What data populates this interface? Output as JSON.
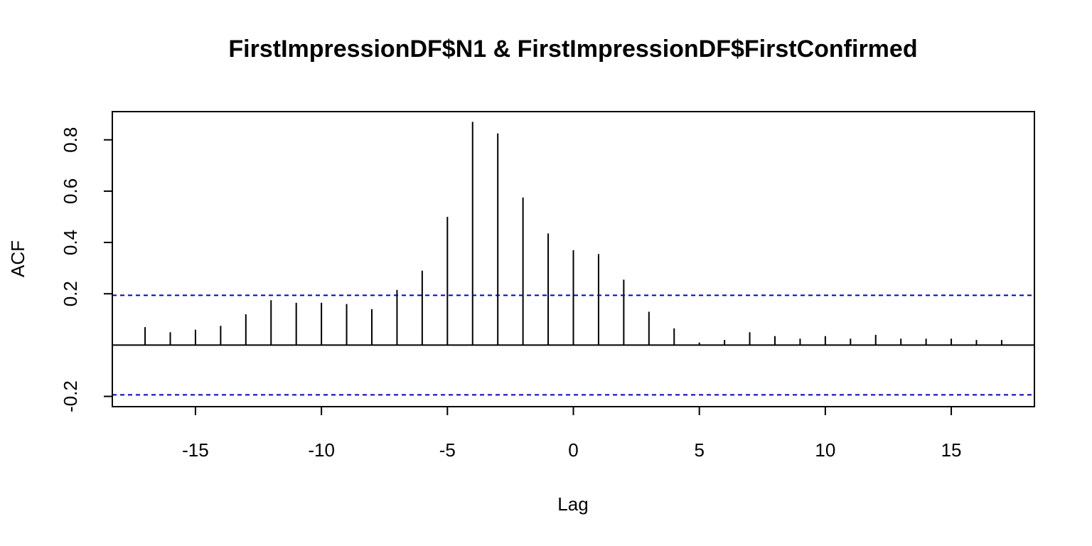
{
  "chart_data": {
    "type": "bar",
    "title": "FirstImpressionDF$N1 & FirstImpressionDF$FirstConfirmed",
    "xlabel": "Lag",
    "ylabel": "ACF",
    "xlim": [
      -18.3,
      18.3
    ],
    "ylim": [
      -0.24,
      0.91
    ],
    "xticks": [
      -15,
      -10,
      -5,
      0,
      5,
      10,
      15
    ],
    "xtick_labels": [
      "-15",
      "-10",
      "-5",
      "0",
      "5",
      "10",
      "15"
    ],
    "yticks": [
      -0.2,
      0.2,
      0.4,
      0.6,
      0.8
    ],
    "ytick_labels": [
      "-0.2",
      "0.2",
      "0.4",
      "0.6",
      "0.8"
    ],
    "grid": false,
    "confidence_band": 0.194,
    "lag": [
      -17,
      -16,
      -15,
      -14,
      -13,
      -12,
      -11,
      -10,
      -9,
      -8,
      -7,
      -6,
      -5,
      -4,
      -3,
      -2,
      -1,
      0,
      1,
      2,
      3,
      4,
      5,
      6,
      7,
      8,
      9,
      10,
      11,
      12,
      13,
      14,
      15,
      16,
      17
    ],
    "values": [
      0.07,
      0.05,
      0.06,
      0.075,
      0.12,
      0.175,
      0.165,
      0.165,
      0.16,
      0.14,
      0.215,
      0.29,
      0.5,
      0.87,
      0.825,
      0.575,
      0.435,
      0.37,
      0.355,
      0.255,
      0.13,
      0.065,
      0.01,
      0.02,
      0.05,
      0.035,
      0.025,
      0.035,
      0.025,
      0.04,
      0.025,
      0.025,
      0.025,
      0.02,
      0.02
    ],
    "colors": {
      "bars": "#000000",
      "confidence": "#0000cd",
      "frame": "#000000"
    }
  }
}
